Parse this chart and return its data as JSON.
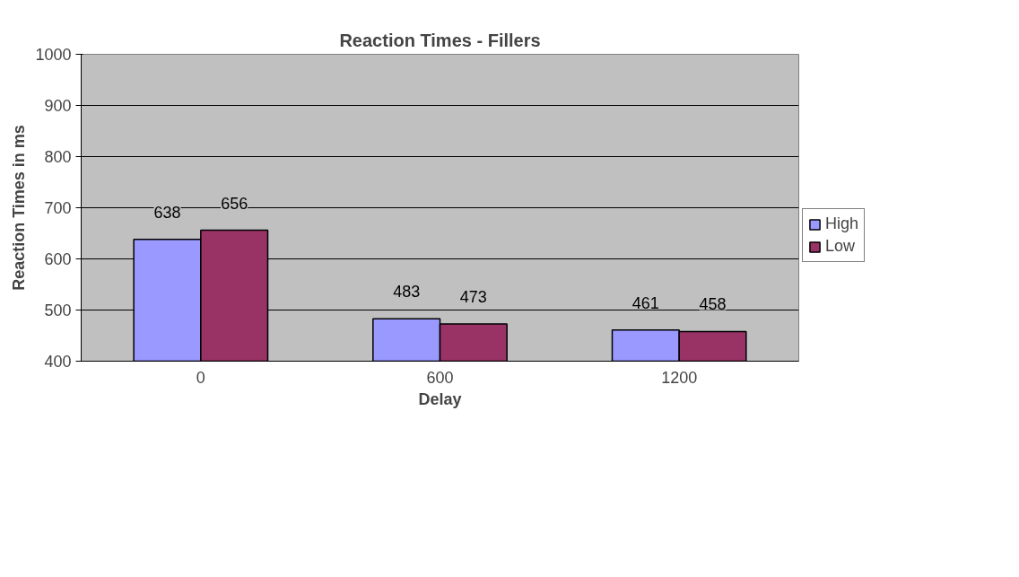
{
  "chart_data": {
    "type": "bar",
    "title": "Reaction Times - Fillers",
    "xlabel": "Delay",
    "ylabel": "Reaction Times in ms",
    "categories": [
      "0",
      "600",
      "1200"
    ],
    "series": [
      {
        "name": "High",
        "color": "#9999ff",
        "values": [
          638,
          483,
          461
        ]
      },
      {
        "name": "Low",
        "color": "#993366",
        "values": [
          656,
          473,
          458
        ]
      }
    ],
    "ylim": [
      400,
      1000
    ],
    "yticks": [
      400,
      500,
      600,
      700,
      800,
      900,
      1000
    ],
    "grid": "y",
    "legend": "right",
    "data_labels": true
  }
}
